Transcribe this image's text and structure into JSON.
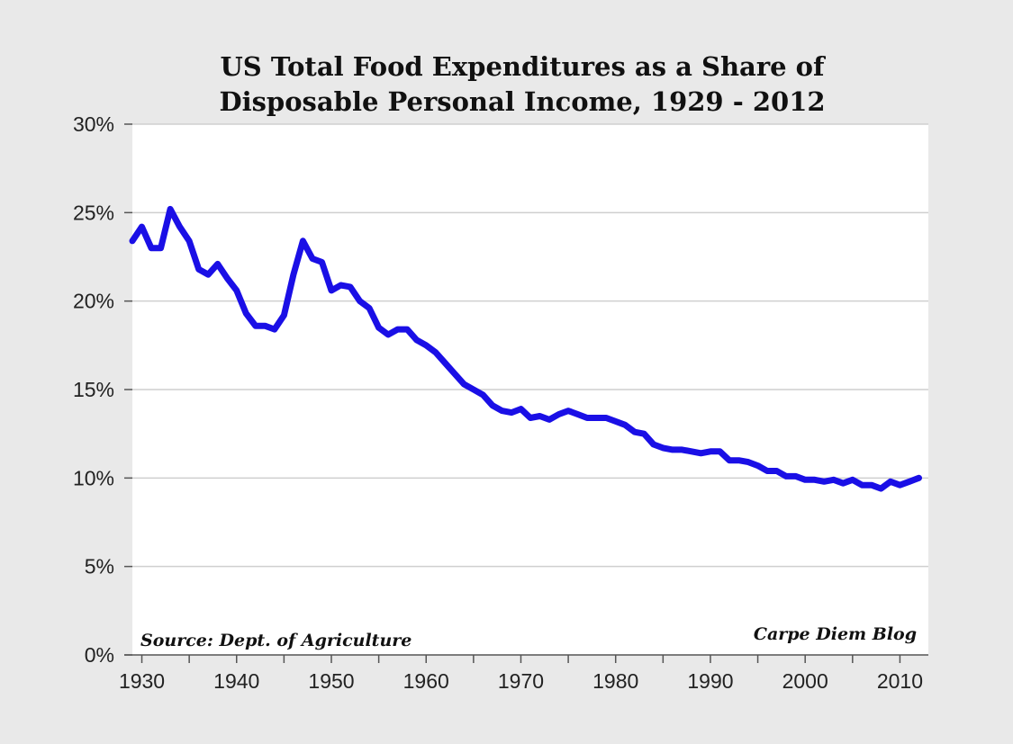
{
  "colors": {
    "series": "#1a0fe6",
    "plot_background": "#ffffff",
    "page_background": "#e9e9e9"
  },
  "chart_data": {
    "type": "line",
    "title_lines": [
      "US Total Food Expenditures as a Share of",
      "Disposable Personal Income, 1929 - 2012"
    ],
    "xlabel": "",
    "ylabel": "",
    "xlim": [
      1929,
      2013
    ],
    "ylim": [
      0,
      30
    ],
    "y_ticks": [
      0,
      5,
      10,
      15,
      20,
      25,
      30
    ],
    "y_tick_labels": [
      "0%",
      "5%",
      "10%",
      "15%",
      "20%",
      "25%",
      "30%"
    ],
    "x_tick_labels": [
      "1930",
      "1940",
      "1950",
      "1960",
      "1970",
      "1980",
      "1990",
      "2000",
      "2010"
    ],
    "x_tick_values": [
      1930,
      1940,
      1950,
      1960,
      1970,
      1980,
      1990,
      2000,
      2010
    ],
    "x_minor_ticks": [
      1935,
      1945,
      1955,
      1965,
      1975,
      1985,
      1995,
      2005
    ],
    "grid": true,
    "legend": "none",
    "annotations": {
      "source": "Source: Dept. of Agriculture",
      "credit": "Carpe Diem Blog"
    },
    "series": [
      {
        "x": [
          1929,
          1930,
          1931,
          1932,
          1933,
          1934,
          1935,
          1936,
          1937,
          1938,
          1939,
          1940,
          1941,
          1942,
          1943,
          1944,
          1945,
          1946,
          1947,
          1948,
          1949,
          1950,
          1951,
          1952,
          1953,
          1954,
          1955,
          1956,
          1957,
          1958,
          1959,
          1960,
          1961,
          1962,
          1963,
          1964,
          1965,
          1966,
          1967,
          1968,
          1969,
          1970,
          1971,
          1972,
          1973,
          1974,
          1975,
          1976,
          1977,
          1978,
          1979,
          1980,
          1981,
          1982,
          1983,
          1984,
          1985,
          1986,
          1987,
          1988,
          1989,
          1990,
          1991,
          1992,
          1993,
          1994,
          1995,
          1996,
          1997,
          1998,
          1999,
          2000,
          2001,
          2002,
          2003,
          2004,
          2005,
          2006,
          2007,
          2008,
          2009,
          2010,
          2011,
          2012
        ],
        "values": [
          23.4,
          24.2,
          23.0,
          23.0,
          25.2,
          24.2,
          23.4,
          21.8,
          21.5,
          22.1,
          21.3,
          20.6,
          19.3,
          18.6,
          18.6,
          18.4,
          19.2,
          21.5,
          23.4,
          22.4,
          22.2,
          20.6,
          20.9,
          20.8,
          20.0,
          19.6,
          18.5,
          18.1,
          18.4,
          18.4,
          17.8,
          17.5,
          17.1,
          16.5,
          15.9,
          15.3,
          15.0,
          14.7,
          14.1,
          13.8,
          13.7,
          13.9,
          13.4,
          13.5,
          13.3,
          13.6,
          13.8,
          13.6,
          13.4,
          13.4,
          13.4,
          13.2,
          13.0,
          12.6,
          12.5,
          11.9,
          11.7,
          11.6,
          11.6,
          11.5,
          11.4,
          11.5,
          11.5,
          11.0,
          11.0,
          10.9,
          10.7,
          10.4,
          10.4,
          10.1,
          10.1,
          9.9,
          9.9,
          9.8,
          9.9,
          9.7,
          9.9,
          9.6,
          9.6,
          9.4,
          9.8,
          9.6,
          9.8,
          10.0
        ]
      }
    ]
  }
}
